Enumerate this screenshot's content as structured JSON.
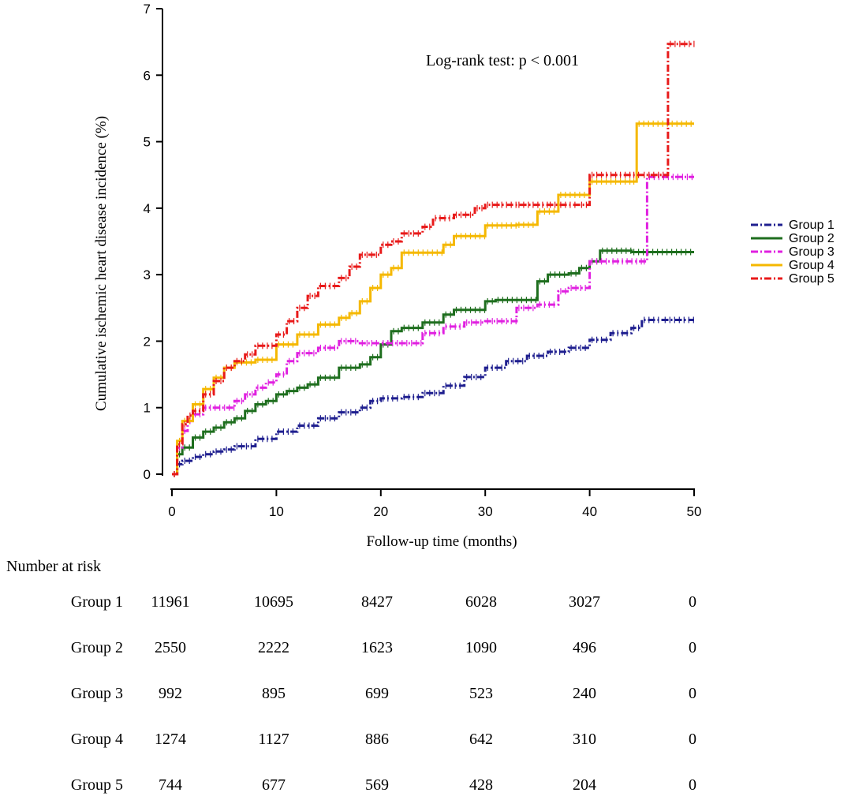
{
  "chart_data": {
    "type": "line",
    "step": true,
    "title": "",
    "annotation": "Log-rank  test:  p < 0.001",
    "xlabel": "Follow-up time (months)",
    "ylabel": "Cumulative ischemic heart disease incidence (%)",
    "xlim": [
      0,
      50
    ],
    "ylim": [
      0,
      7
    ],
    "xticks": [
      "0",
      "10",
      "20",
      "30",
      "40",
      "50"
    ],
    "yticks": [
      "0",
      "1",
      "2",
      "3",
      "4",
      "5",
      "6",
      "7"
    ],
    "legend_position": "right",
    "series": [
      {
        "name": "Group 1",
        "color": "#1f1f8f",
        "dash": "dashdot",
        "x": [
          0,
          0.5,
          1,
          2,
          3,
          4,
          5,
          6,
          8,
          10,
          12,
          14,
          16,
          18,
          19,
          20,
          22,
          24,
          26,
          28,
          30,
          32,
          34,
          36,
          38,
          40,
          42,
          44,
          45,
          47,
          50
        ],
        "y": [
          0,
          0.15,
          0.2,
          0.26,
          0.3,
          0.34,
          0.37,
          0.42,
          0.53,
          0.64,
          0.73,
          0.84,
          0.93,
          1.0,
          1.1,
          1.14,
          1.16,
          1.22,
          1.33,
          1.46,
          1.6,
          1.7,
          1.78,
          1.84,
          1.9,
          2.02,
          2.12,
          2.2,
          2.32,
          2.32,
          2.32
        ]
      },
      {
        "name": "Group 2",
        "color": "#1e6e1e",
        "dash": "solid",
        "x": [
          0,
          0.5,
          1,
          2,
          3,
          4,
          5,
          6,
          7,
          8,
          9,
          10,
          11,
          12,
          13,
          14,
          16,
          18,
          19,
          20,
          21,
          22,
          24,
          26,
          27,
          30,
          31,
          35,
          36,
          38,
          39,
          40,
          41,
          44,
          50
        ],
        "y": [
          0,
          0.3,
          0.4,
          0.55,
          0.64,
          0.7,
          0.78,
          0.84,
          0.95,
          1.05,
          1.1,
          1.2,
          1.25,
          1.3,
          1.35,
          1.45,
          1.6,
          1.65,
          1.76,
          1.95,
          2.15,
          2.2,
          2.28,
          2.4,
          2.47,
          2.6,
          2.62,
          2.9,
          3.0,
          3.02,
          3.1,
          3.2,
          3.36,
          3.34,
          3.34
        ]
      },
      {
        "name": "Group 3",
        "color": "#e020e0",
        "dash": "dashdot",
        "x": [
          0,
          0.5,
          1,
          1.5,
          2,
          3,
          6,
          7,
          8,
          9,
          10,
          11,
          12,
          14,
          16,
          18,
          20,
          24,
          26,
          28,
          30,
          33,
          35,
          37,
          38,
          40,
          42,
          45,
          45.5,
          50
        ],
        "y": [
          0,
          0.4,
          0.65,
          0.8,
          0.9,
          1.0,
          1.1,
          1.2,
          1.3,
          1.38,
          1.5,
          1.7,
          1.82,
          1.9,
          2.0,
          1.97,
          1.97,
          2.12,
          2.22,
          2.28,
          2.3,
          2.5,
          2.55,
          2.75,
          2.8,
          3.2,
          3.2,
          3.2,
          4.47,
          4.47
        ]
      },
      {
        "name": "Group 4",
        "color": "#f5b800",
        "dash": "solid",
        "x": [
          0,
          0.5,
          1,
          2,
          3,
          4,
          5,
          6,
          8,
          10,
          12,
          14,
          16,
          17,
          18,
          19,
          20,
          21,
          22,
          26,
          27,
          30,
          33,
          35,
          37,
          40,
          44,
          44.5,
          50
        ],
        "y": [
          0,
          0.5,
          0.8,
          1.05,
          1.28,
          1.45,
          1.6,
          1.68,
          1.72,
          1.95,
          2.1,
          2.25,
          2.35,
          2.42,
          2.6,
          2.8,
          3.0,
          3.1,
          3.33,
          3.45,
          3.58,
          3.74,
          3.75,
          3.95,
          4.2,
          4.4,
          4.4,
          5.27,
          5.27
        ]
      },
      {
        "name": "Group 5",
        "color": "#e81a1a",
        "dash": "dashdot",
        "x": [
          0,
          0.5,
          1,
          1.5,
          2,
          3,
          4,
          5,
          6,
          7,
          8,
          10,
          11,
          12,
          13,
          14,
          16,
          17,
          18,
          20,
          21,
          22,
          24,
          25,
          27,
          29,
          30,
          33,
          36,
          37,
          39,
          40,
          44,
          45,
          47.2,
          47.5,
          50
        ],
        "y": [
          0,
          0.45,
          0.75,
          0.88,
          0.95,
          1.2,
          1.4,
          1.6,
          1.7,
          1.8,
          1.93,
          2.1,
          2.3,
          2.5,
          2.68,
          2.83,
          2.95,
          3.12,
          3.3,
          3.45,
          3.5,
          3.62,
          3.72,
          3.85,
          3.9,
          4.0,
          4.05,
          4.05,
          4.05,
          4.05,
          4.05,
          4.5,
          4.5,
          4.5,
          4.5,
          6.47,
          6.47
        ]
      }
    ]
  },
  "risk_table": {
    "title": "Number at risk",
    "timepoints": [
      0,
      10,
      20,
      30,
      40,
      50
    ],
    "rows": [
      {
        "group": "Group 1",
        "values": [
          "11961",
          "10695",
          "8427",
          "6028",
          "3027",
          "0"
        ]
      },
      {
        "group": "Group 2",
        "values": [
          "2550",
          "2222",
          "1623",
          "1090",
          "496",
          "0"
        ]
      },
      {
        "group": "Group 3",
        "values": [
          "992",
          "895",
          "699",
          "523",
          "240",
          "0"
        ]
      },
      {
        "group": "Group 4",
        "values": [
          "1274",
          "1127",
          "886",
          "642",
          "310",
          "0"
        ]
      },
      {
        "group": "Group 5",
        "values": [
          "744",
          "677",
          "569",
          "428",
          "204",
          "0"
        ]
      }
    ]
  }
}
